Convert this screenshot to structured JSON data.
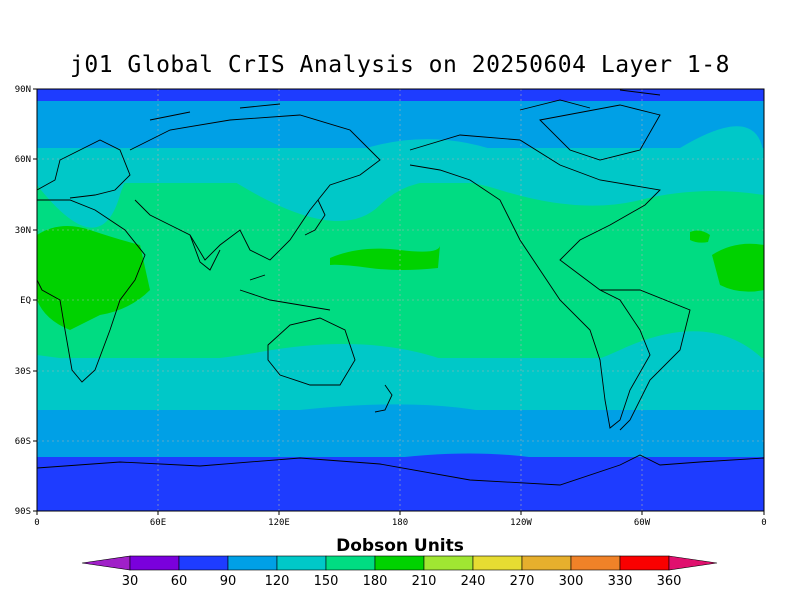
{
  "title": "j01 Global CrIS Analysis on 20250604 Layer 1-8",
  "colorbar": {
    "title": "Dobson Units",
    "labels": [
      "30",
      "60",
      "90",
      "120",
      "150",
      "180",
      "210",
      "240",
      "270",
      "300",
      "330",
      "360"
    ],
    "colors": [
      "#a020c8",
      "#7a00dc",
      "#1e3cff",
      "#00a0e6",
      "#00c8c8",
      "#00dc82",
      "#00d200",
      "#a0e632",
      "#e6dc32",
      "#e6af2d",
      "#f08228",
      "#fa0000",
      "#e0106e"
    ]
  },
  "axes": {
    "lat_labels": [
      "90N",
      "60N",
      "30N",
      "EQ",
      "30S",
      "60S",
      "90S"
    ],
    "lon_labels": [
      "0",
      "60E",
      "120E",
      "180",
      "120W",
      "60W",
      "0"
    ]
  },
  "chart_data": {
    "type": "heatmap",
    "title": "j01 Global CrIS Analysis on 20250604 Layer 1-8",
    "xlabel": "",
    "ylabel": "",
    "x_range": [
      0,
      360
    ],
    "y_range": [
      -90,
      90
    ],
    "x_ticks": [
      "0",
      "60E",
      "120E",
      "180",
      "120W",
      "60W",
      "0"
    ],
    "y_ticks": [
      "90N",
      "60N",
      "30N",
      "EQ",
      "30S",
      "60S",
      "90S"
    ],
    "colorbar_label": "Dobson Units",
    "levels": [
      30,
      60,
      90,
      120,
      150,
      180,
      210,
      240,
      270,
      300,
      330,
      360
    ],
    "regions": [
      {
        "latitudes": "90S-70S",
        "value_range": [
          60,
          90
        ]
      },
      {
        "latitudes": "70S-55S",
        "value_range": [
          90,
          120
        ]
      },
      {
        "latitudes": "55S-40S",
        "value_range": [
          120,
          150
        ]
      },
      {
        "latitudes": "40S-20S",
        "value_range": [
          150,
          180
        ]
      },
      {
        "latitudes": "20S-40N",
        "value_range": [
          180,
          210
        ]
      },
      {
        "latitudes": "40N-55N",
        "value_range": [
          150,
          180
        ]
      },
      {
        "latitudes": "55N-75N",
        "value_range": [
          120,
          150
        ]
      },
      {
        "latitudes": "75N-85N",
        "value_range": [
          90,
          120
        ]
      },
      {
        "latitudes": "85N-90N",
        "value_range": [
          60,
          90
        ]
      }
    ],
    "grid": true
  }
}
